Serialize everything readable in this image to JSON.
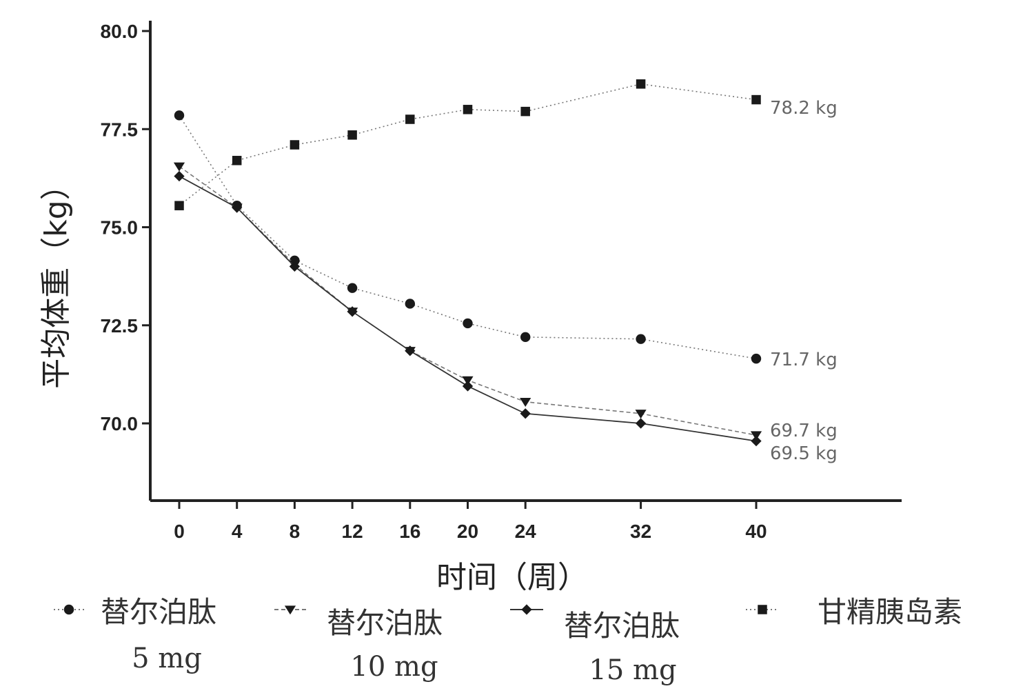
{
  "chart_data": {
    "type": "line",
    "ylabel": "平均体重（kg）",
    "xlabel": "时间（周）",
    "x": [
      0,
      4,
      8,
      12,
      16,
      20,
      24,
      32,
      40
    ],
    "xticks": [
      0,
      4,
      8,
      12,
      16,
      20,
      24,
      32,
      40
    ],
    "yticks": [
      "70.0",
      "72.5",
      "75.0",
      "77.5",
      "80.0"
    ],
    "ylim": [
      68.1,
      80.0
    ],
    "xlim": [
      -2,
      50
    ],
    "grid": false,
    "legend_position": "bottom",
    "series": [
      {
        "name": "替尔泊肽",
        "dose": "5 mg",
        "marker": "circle",
        "line_style": "dotted",
        "values": [
          77.85,
          75.55,
          74.15,
          73.45,
          73.05,
          72.55,
          72.2,
          72.15,
          71.65
        ],
        "end_label": "71.7 kg"
      },
      {
        "name": "替尔泊肽",
        "dose": "10 mg",
        "marker": "triangle-down",
        "line_style": "dashed",
        "values": [
          76.55,
          75.5,
          74.05,
          72.85,
          71.85,
          71.1,
          70.55,
          70.25,
          69.7
        ],
        "end_label": "69.7 kg"
      },
      {
        "name": "替尔泊肽",
        "dose": "15 mg",
        "marker": "diamond",
        "line_style": "solid",
        "values": [
          76.3,
          75.5,
          74.0,
          72.85,
          71.85,
          70.95,
          70.25,
          70.0,
          69.55
        ],
        "end_label": "69.5 kg"
      },
      {
        "name": "甘精胰岛素",
        "dose": "",
        "marker": "square",
        "line_style": "dotted",
        "values": [
          75.55,
          76.7,
          77.1,
          77.35,
          77.75,
          78.0,
          77.95,
          78.65,
          78.25
        ],
        "end_label": "78.2 kg"
      }
    ]
  }
}
